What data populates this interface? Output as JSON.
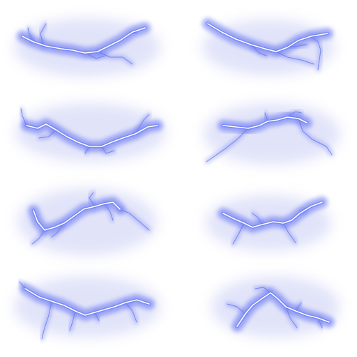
{
  "sprite_sheet": {
    "background_color": "#ffffff",
    "glow_color": "#5a6cf0",
    "halo_color": "#c9cdf5",
    "core_color": "#ffffff",
    "frame_count": 8,
    "columns": 2,
    "rows": 4,
    "frames": [
      {
        "name": "lightning-frame-1"
      },
      {
        "name": "lightning-frame-2"
      },
      {
        "name": "lightning-frame-3"
      },
      {
        "name": "lightning-frame-4"
      },
      {
        "name": "lightning-frame-5"
      },
      {
        "name": "lightning-frame-6"
      },
      {
        "name": "lightning-frame-7"
      },
      {
        "name": "lightning-frame-8"
      }
    ]
  }
}
